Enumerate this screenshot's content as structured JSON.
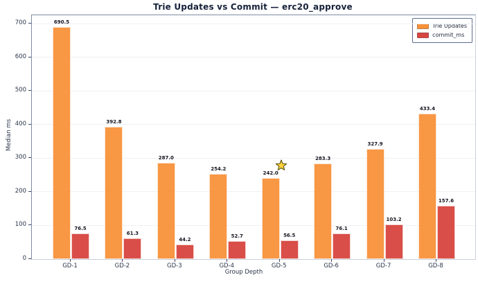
{
  "title": "Trie Updates vs Commit — erc20_approve",
  "chart_data": {
    "type": "bar",
    "categories": [
      "GD-1",
      "GD-2",
      "GD-3",
      "GD-4",
      "GD-5",
      "GD-6",
      "GD-7",
      "GD-8"
    ],
    "series": [
      {
        "name": "Trie Updates",
        "color": "#F8923A",
        "values": [
          690.5,
          392.8,
          287.0,
          254.2,
          242.0,
          283.3,
          327.9,
          433.4
        ]
      },
      {
        "name": "commit_ms",
        "color": "#D8453F",
        "values": [
          76.5,
          61.3,
          44.2,
          52.7,
          56.5,
          76.1,
          103.2,
          157.6
        ]
      }
    ],
    "xlabel": "Group Depth",
    "ylabel": "Median ms",
    "ylim": [
      0,
      725
    ],
    "yticks": [
      0,
      100,
      200,
      300,
      400,
      500,
      600,
      700
    ],
    "grid": true,
    "legend_position": "upper right",
    "annotations": [
      {
        "type": "star",
        "category": "GD-5",
        "series": "Trie Updates",
        "fill": "#FFD43B",
        "stroke": "#5A5214"
      }
    ]
  }
}
